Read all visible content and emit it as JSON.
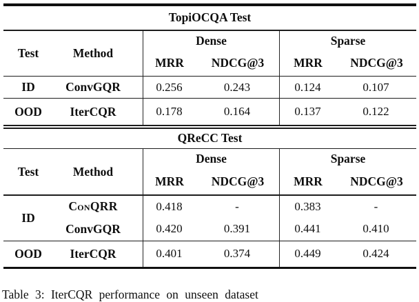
{
  "colors": {
    "background": "#ffffff",
    "text": "#0e0e0e",
    "rule": "#1c1c1c"
  },
  "tables": [
    {
      "title": "TopiOCQA Test",
      "test_label": "Test",
      "method_label": "Method",
      "groups": [
        {
          "label": "Dense",
          "metrics": [
            "MRR",
            "NDCG@3"
          ]
        },
        {
          "label": "Sparse",
          "metrics": [
            "MRR",
            "NDCG@3"
          ]
        }
      ],
      "rows": [
        {
          "test": "ID",
          "method": "ConvGQR",
          "values": [
            "0.256",
            "0.243",
            "0.124",
            "0.107"
          ]
        },
        {
          "test": "OOD",
          "method": "IterCQR",
          "values": [
            "0.178",
            "0.164",
            "0.137",
            "0.122"
          ]
        }
      ]
    },
    {
      "title": "QReCC Test",
      "test_label": "Test",
      "method_label": "Method",
      "groups": [
        {
          "label": "Dense",
          "metrics": [
            "MRR",
            "NDCG@3"
          ]
        },
        {
          "label": "Sparse",
          "metrics": [
            "MRR",
            "NDCG@3"
          ]
        }
      ],
      "rows": [
        {
          "test": "ID",
          "method": "ConQRR",
          "values": [
            "0.418",
            "-",
            "0.383",
            "-"
          ]
        },
        {
          "test": "",
          "method": "ConvGQR",
          "values": [
            "0.420",
            "0.391",
            "0.441",
            "0.410"
          ]
        },
        {
          "test": "OOD",
          "method": "IterCQR",
          "values": [
            "0.401",
            "0.374",
            "0.449",
            "0.424"
          ]
        }
      ]
    }
  ],
  "caption": "Table 3: IterCQR performance on unseen dataset"
}
